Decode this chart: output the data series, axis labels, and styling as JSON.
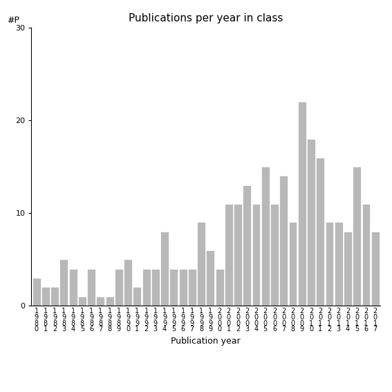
{
  "title": "Publications per year in class",
  "xlabel": "Publication year",
  "ylabel": "#P",
  "years": [
    "1980",
    "1981",
    "1982",
    "1983",
    "1984",
    "1985",
    "1986",
    "1987",
    "1988",
    "1989",
    "1990",
    "1991",
    "1992",
    "1993",
    "1994",
    "1995",
    "1996",
    "1997",
    "1998",
    "1999",
    "2000",
    "2001",
    "2002",
    "2003",
    "2004",
    "2005",
    "2006",
    "2007",
    "2008",
    "2009",
    "2010",
    "2011",
    "2012",
    "2013",
    "2014",
    "2015",
    "2016",
    "2017"
  ],
  "values": [
    3,
    2,
    2,
    5,
    4,
    1,
    4,
    1,
    1,
    4,
    5,
    2,
    4,
    4,
    8,
    4,
    4,
    4,
    9,
    6,
    4,
    11,
    11,
    13,
    11,
    15,
    11,
    14,
    9,
    22,
    18,
    16,
    9,
    9,
    8,
    15,
    11,
    8
  ],
  "bar_color": "#b8b8b8",
  "bar_edge_color": "#ffffff",
  "ylim": [
    0,
    30
  ],
  "yticks": [
    0,
    10,
    20,
    30
  ],
  "background_color": "#ffffff",
  "title_fontsize": 11,
  "axis_fontsize": 9,
  "tick_fontsize": 7
}
